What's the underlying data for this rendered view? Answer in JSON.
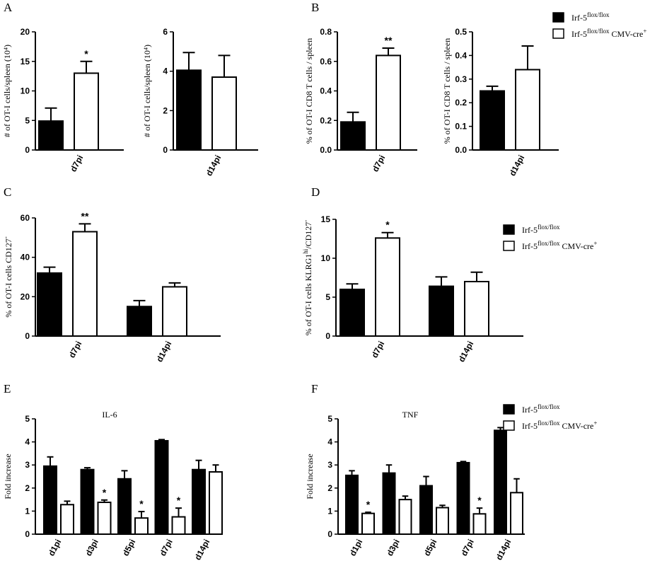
{
  "legend_entries": {
    "wt": "Irf-5",
    "wt_sup": "flox/flox",
    "ko": "Irf-5",
    "ko_sup": "flox/flox",
    "ko_suffix": " CMV-cre",
    "ko_suffix_sup": "+"
  },
  "colors": {
    "wt": "#000000",
    "ko": "#ffffff",
    "stroke": "#000000"
  },
  "chart_data": [
    {
      "id": "A1",
      "panel_label": "A",
      "type": "bar",
      "ylabel": "# of OT-I cells/spleen (10⁴)",
      "ylim": [
        0,
        20
      ],
      "yticks": [
        0,
        5,
        10,
        15,
        20
      ],
      "categories": [
        "d7pi"
      ],
      "series": [
        {
          "group": "wt",
          "values": [
            4.9
          ],
          "errors": [
            2.2
          ]
        },
        {
          "group": "ko",
          "values": [
            13.0
          ],
          "errors": [
            2.0
          ]
        }
      ],
      "annotations": [
        {
          "category": 0,
          "series": 1,
          "text": "*"
        }
      ]
    },
    {
      "id": "A2",
      "panel_label": "",
      "type": "bar",
      "ylabel": "# of OT-I cells/spleen (10⁴)",
      "ylim": [
        0,
        6
      ],
      "yticks": [
        0,
        2,
        4,
        6
      ],
      "categories": [
        "d14pi"
      ],
      "series": [
        {
          "group": "wt",
          "values": [
            4.05
          ],
          "errors": [
            0.9
          ]
        },
        {
          "group": "ko",
          "values": [
            3.7
          ],
          "errors": [
            1.1
          ]
        }
      ],
      "annotations": []
    },
    {
      "id": "B1",
      "panel_label": "B",
      "type": "bar",
      "ylabel": "% of OT-I CD8 T cells / spleen",
      "ylim": [
        0,
        0.8
      ],
      "yticks": [
        0.0,
        0.2,
        0.4,
        0.6,
        0.8
      ],
      "tick_decimals": 1,
      "categories": [
        "d7pi"
      ],
      "series": [
        {
          "group": "wt",
          "values": [
            0.19
          ],
          "errors": [
            0.065
          ]
        },
        {
          "group": "ko",
          "values": [
            0.64
          ],
          "errors": [
            0.05
          ]
        }
      ],
      "annotations": [
        {
          "category": 0,
          "series": 1,
          "text": "**"
        }
      ]
    },
    {
      "id": "B2",
      "panel_label": "",
      "type": "bar",
      "ylabel": "% of OT-I CD8 T cells / spleen",
      "ylim": [
        0,
        0.5
      ],
      "yticks": [
        0.0,
        0.1,
        0.2,
        0.3,
        0.4,
        0.5
      ],
      "tick_decimals": 1,
      "categories": [
        "d14pi"
      ],
      "series": [
        {
          "group": "wt",
          "values": [
            0.25
          ],
          "errors": [
            0.02
          ]
        },
        {
          "group": "ko",
          "values": [
            0.34
          ],
          "errors": [
            0.1
          ]
        }
      ],
      "annotations": []
    },
    {
      "id": "C",
      "panel_label": "C",
      "type": "bar",
      "ylabel": "% of OT-I cells CD127",
      "ylabel_sup": "-",
      "ylim": [
        0,
        60
      ],
      "yticks": [
        0,
        20,
        40,
        60
      ],
      "categories": [
        "d7pi",
        "d14pi"
      ],
      "series": [
        {
          "group": "wt",
          "values": [
            32,
            15
          ],
          "errors": [
            3,
            3
          ]
        },
        {
          "group": "ko",
          "values": [
            53,
            25
          ],
          "errors": [
            4,
            2
          ]
        }
      ],
      "annotations": [
        {
          "category": 0,
          "series": 1,
          "text": "**"
        }
      ]
    },
    {
      "id": "D",
      "panel_label": "D",
      "type": "bar",
      "ylabel": "% of OT-I cells KLRG1",
      "ylabel_sup": "hi",
      "ylabel_tail": "/CD127",
      "ylabel_tail_sup": "-",
      "ylim": [
        0,
        15
      ],
      "yticks": [
        0,
        5,
        10,
        15
      ],
      "categories": [
        "d7pi",
        "d14pi"
      ],
      "series": [
        {
          "group": "wt",
          "values": [
            6.0,
            6.4
          ],
          "errors": [
            0.7,
            1.2
          ]
        },
        {
          "group": "ko",
          "values": [
            12.6,
            7.0
          ],
          "errors": [
            0.7,
            1.2
          ]
        }
      ],
      "annotations": [
        {
          "category": 0,
          "series": 1,
          "text": "*"
        }
      ]
    },
    {
      "id": "E",
      "panel_label": "E",
      "type": "bar",
      "title": "IL-6",
      "ylabel": "Fold increase",
      "ylim": [
        0,
        5
      ],
      "yticks": [
        0,
        1,
        2,
        3,
        4,
        5
      ],
      "categories": [
        "d1pi",
        "d3pi",
        "d5pi",
        "d7pi",
        "d14pi"
      ],
      "series": [
        {
          "group": "wt",
          "values": [
            2.95,
            2.8,
            2.4,
            4.05,
            2.8
          ],
          "errors": [
            0.4,
            0.08,
            0.35,
            0.05,
            0.4
          ]
        },
        {
          "group": "ko",
          "values": [
            1.28,
            1.38,
            0.7,
            0.75,
            2.7
          ],
          "errors": [
            0.15,
            0.1,
            0.28,
            0.38,
            0.3
          ]
        }
      ],
      "annotations": [
        {
          "category": 1,
          "series": 1,
          "text": "*"
        },
        {
          "category": 2,
          "series": 1,
          "text": "*"
        },
        {
          "category": 3,
          "series": 1,
          "text": "*"
        }
      ]
    },
    {
      "id": "F",
      "panel_label": "F",
      "type": "bar",
      "title": "TNF",
      "ylabel": "Fold increase",
      "ylim": [
        0,
        5
      ],
      "yticks": [
        0,
        1,
        2,
        3,
        4,
        5
      ],
      "categories": [
        "d1pi",
        "d3pi",
        "d5pi",
        "d7pi",
        "d14pi"
      ],
      "series": [
        {
          "group": "wt",
          "values": [
            2.55,
            2.65,
            2.1,
            3.1,
            4.5
          ],
          "errors": [
            0.2,
            0.35,
            0.4,
            0.05,
            0.12
          ]
        },
        {
          "group": "ko",
          "values": [
            0.9,
            1.5,
            1.15,
            0.88,
            1.8
          ],
          "errors": [
            0.05,
            0.15,
            0.1,
            0.25,
            0.6
          ]
        }
      ],
      "annotations": [
        {
          "category": 0,
          "series": 1,
          "text": "*"
        },
        {
          "category": 3,
          "series": 1,
          "text": "*"
        }
      ]
    }
  ]
}
